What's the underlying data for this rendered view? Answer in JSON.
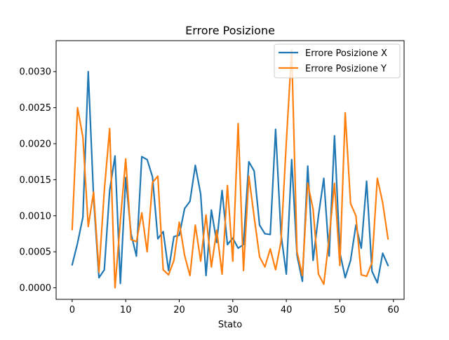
{
  "chart_data": {
    "type": "line",
    "title": "Errore Posizione",
    "xlabel": "Stato",
    "ylabel": "",
    "xlim": [
      -3,
      62
    ],
    "ylim": [
      -0.00016,
      0.00343
    ],
    "x_ticks": [
      0,
      10,
      20,
      30,
      40,
      50,
      60
    ],
    "y_ticks": [
      0.0,
      0.0005,
      0.001,
      0.0015,
      0.002,
      0.0025,
      0.003
    ],
    "x_tick_labels": [
      "0",
      "10",
      "20",
      "30",
      "40",
      "50",
      "60"
    ],
    "y_tick_labels": [
      "0.0000",
      "0.0005",
      "0.0010",
      "0.0015",
      "0.0020",
      "0.0025",
      "0.0030"
    ],
    "grid": false,
    "legend_position": "top-right",
    "x": [
      0,
      1,
      2,
      3,
      4,
      5,
      6,
      7,
      8,
      9,
      10,
      11,
      12,
      13,
      14,
      15,
      16,
      17,
      18,
      19,
      20,
      21,
      22,
      23,
      24,
      25,
      26,
      27,
      28,
      29,
      30,
      31,
      32,
      33,
      34,
      35,
      36,
      37,
      38,
      39,
      40,
      41,
      42,
      43,
      44,
      45,
      46,
      47,
      48,
      49,
      50,
      51,
      52,
      53,
      54,
      55,
      56,
      57,
      58,
      59
    ],
    "series": [
      {
        "name": "Errore Posizione X",
        "color": "#1f77b4",
        "values": [
          0.00032,
          0.00062,
          0.00098,
          0.003,
          0.00125,
          0.00014,
          0.00025,
          0.00135,
          0.00183,
          6e-05,
          0.00153,
          0.00075,
          0.00044,
          0.00182,
          0.00178,
          0.00154,
          0.00068,
          0.00078,
          0.00024,
          0.00071,
          0.00073,
          0.0011,
          0.0012,
          0.0017,
          0.0013,
          0.00017,
          0.00108,
          0.00063,
          0.00135,
          0.0006,
          0.00069,
          0.00055,
          0.0006,
          0.00175,
          0.00162,
          0.00087,
          0.00075,
          0.00074,
          0.0022,
          0.00075,
          0.00019,
          0.00178,
          0.00045,
          9e-05,
          0.00169,
          0.00038,
          0.001,
          0.00152,
          0.00044,
          0.00211,
          0.00049,
          0.00014,
          0.00038,
          0.00087,
          0.00055,
          0.00148,
          0.00023,
          7e-05,
          0.00048,
          0.00031
        ]
      },
      {
        "name": "Errore Posizione Y",
        "color": "#ff7f0e",
        "values": [
          0.00081,
          0.0025,
          0.00209,
          0.00085,
          0.00133,
          0.00022,
          0.00135,
          0.00221,
          0.0,
          0.00093,
          0.00179,
          0.00067,
          0.00064,
          0.00104,
          0.0005,
          0.00146,
          0.00155,
          0.00025,
          0.00018,
          0.00038,
          0.00091,
          0.00045,
          0.00017,
          0.00087,
          0.00037,
          0.00101,
          0.00029,
          0.0008,
          0.00019,
          0.00142,
          0.00037,
          0.00228,
          0.00024,
          0.00155,
          0.00098,
          0.00043,
          0.00029,
          0.00054,
          0.00025,
          0.00064,
          0.00202,
          0.0033,
          0.0005,
          0.00017,
          0.00145,
          0.00109,
          0.00019,
          5e-05,
          0.00069,
          0.00145,
          0.00031,
          0.00243,
          0.00117,
          0.001,
          0.00018,
          0.00016,
          0.00035,
          0.00152,
          0.00118,
          0.00068
        ]
      }
    ]
  }
}
